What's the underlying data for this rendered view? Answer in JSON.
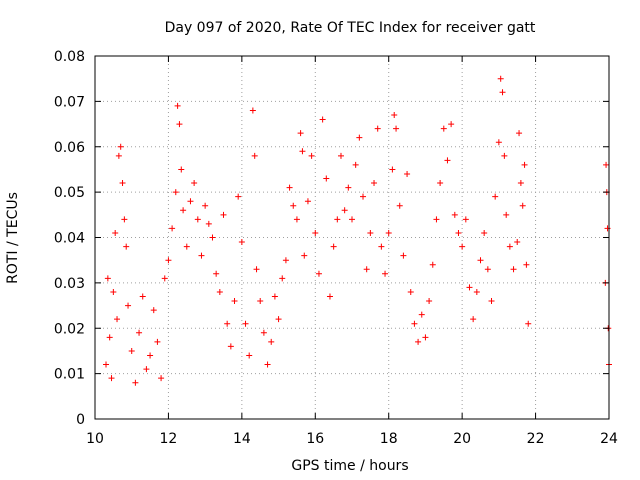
{
  "chart_data": {
    "type": "scatter",
    "title": "Day 097 of 2020, Rate Of TEC Index for receiver gatt",
    "xlabel": "GPS time / hours",
    "ylabel": "ROTI / TECUs",
    "xlim": [
      10,
      24
    ],
    "ylim": [
      0,
      0.08
    ],
    "xticks": [
      "10",
      "12",
      "14",
      "16",
      "18",
      "20",
      "22",
      "24"
    ],
    "yticks": [
      "0",
      "0.01",
      "0.02",
      "0.03",
      "0.04",
      "0.05",
      "0.06",
      "0.07",
      "0.08"
    ],
    "grid": true,
    "marker": "plus",
    "color": "#ff0000",
    "series": [
      {
        "points": [
          [
            10.3,
            0.012
          ],
          [
            10.35,
            0.031
          ],
          [
            10.4,
            0.018
          ],
          [
            10.45,
            0.009
          ],
          [
            10.5,
            0.028
          ],
          [
            10.55,
            0.041
          ],
          [
            10.6,
            0.022
          ],
          [
            10.65,
            0.058
          ],
          [
            10.7,
            0.06
          ],
          [
            10.75,
            0.052
          ],
          [
            10.8,
            0.044
          ],
          [
            10.85,
            0.038
          ],
          [
            10.9,
            0.025
          ],
          [
            11.0,
            0.015
          ],
          [
            11.1,
            0.008
          ],
          [
            11.2,
            0.019
          ],
          [
            11.3,
            0.027
          ],
          [
            11.4,
            0.011
          ],
          [
            11.5,
            0.014
          ],
          [
            11.6,
            0.024
          ],
          [
            11.7,
            0.017
          ],
          [
            11.8,
            0.009
          ],
          [
            11.9,
            0.031
          ],
          [
            12.0,
            0.035
          ],
          [
            12.1,
            0.042
          ],
          [
            12.2,
            0.05
          ],
          [
            12.25,
            0.069
          ],
          [
            12.3,
            0.065
          ],
          [
            12.35,
            0.055
          ],
          [
            12.4,
            0.046
          ],
          [
            12.5,
            0.038
          ],
          [
            12.6,
            0.048
          ],
          [
            12.7,
            0.052
          ],
          [
            12.8,
            0.044
          ],
          [
            12.9,
            0.036
          ],
          [
            13.0,
            0.047
          ],
          [
            13.1,
            0.043
          ],
          [
            13.2,
            0.04
          ],
          [
            13.3,
            0.032
          ],
          [
            13.4,
            0.028
          ],
          [
            13.5,
            0.045
          ],
          [
            13.6,
            0.021
          ],
          [
            13.7,
            0.016
          ],
          [
            13.8,
            0.026
          ],
          [
            13.9,
            0.049
          ],
          [
            14.0,
            0.039
          ],
          [
            14.1,
            0.021
          ],
          [
            14.2,
            0.014
          ],
          [
            14.3,
            0.068
          ],
          [
            14.35,
            0.058
          ],
          [
            14.4,
            0.033
          ],
          [
            14.5,
            0.026
          ],
          [
            14.6,
            0.019
          ],
          [
            14.7,
            0.012
          ],
          [
            14.8,
            0.017
          ],
          [
            14.9,
            0.027
          ],
          [
            15.0,
            0.022
          ],
          [
            15.1,
            0.031
          ],
          [
            15.2,
            0.035
          ],
          [
            15.3,
            0.051
          ],
          [
            15.4,
            0.047
          ],
          [
            15.5,
            0.044
          ],
          [
            15.6,
            0.063
          ],
          [
            15.65,
            0.059
          ],
          [
            15.7,
            0.036
          ],
          [
            15.8,
            0.048
          ],
          [
            15.9,
            0.058
          ],
          [
            16.0,
            0.041
          ],
          [
            16.1,
            0.032
          ],
          [
            16.2,
            0.066
          ],
          [
            16.3,
            0.053
          ],
          [
            16.4,
            0.027
          ],
          [
            16.5,
            0.038
          ],
          [
            16.6,
            0.044
          ],
          [
            16.7,
            0.058
          ],
          [
            16.8,
            0.046
          ],
          [
            16.9,
            0.051
          ],
          [
            17.0,
            0.044
          ],
          [
            17.1,
            0.056
          ],
          [
            17.2,
            0.062
          ],
          [
            17.3,
            0.049
          ],
          [
            17.4,
            0.033
          ],
          [
            17.5,
            0.041
          ],
          [
            17.6,
            0.052
          ],
          [
            17.7,
            0.064
          ],
          [
            17.8,
            0.038
          ],
          [
            17.9,
            0.032
          ],
          [
            18.0,
            0.041
          ],
          [
            18.1,
            0.055
          ],
          [
            18.15,
            0.067
          ],
          [
            18.2,
            0.064
          ],
          [
            18.3,
            0.047
          ],
          [
            18.4,
            0.036
          ],
          [
            18.5,
            0.054
          ],
          [
            18.6,
            0.028
          ],
          [
            18.7,
            0.021
          ],
          [
            18.8,
            0.017
          ],
          [
            18.9,
            0.023
          ],
          [
            19.0,
            0.018
          ],
          [
            19.1,
            0.026
          ],
          [
            19.2,
            0.034
          ],
          [
            19.3,
            0.044
          ],
          [
            19.4,
            0.052
          ],
          [
            19.5,
            0.064
          ],
          [
            19.6,
            0.057
          ],
          [
            19.7,
            0.065
          ],
          [
            19.8,
            0.045
          ],
          [
            19.9,
            0.041
          ],
          [
            20.0,
            0.038
          ],
          [
            20.1,
            0.044
          ],
          [
            20.2,
            0.029
          ],
          [
            20.3,
            0.022
          ],
          [
            20.4,
            0.028
          ],
          [
            20.5,
            0.035
          ],
          [
            20.6,
            0.041
          ],
          [
            20.7,
            0.033
          ],
          [
            20.8,
            0.026
          ],
          [
            20.9,
            0.049
          ],
          [
            21.0,
            0.061
          ],
          [
            21.05,
            0.075
          ],
          [
            21.1,
            0.072
          ],
          [
            21.15,
            0.058
          ],
          [
            21.2,
            0.045
          ],
          [
            21.3,
            0.038
          ],
          [
            21.4,
            0.033
          ],
          [
            21.5,
            0.039
          ],
          [
            21.55,
            0.063
          ],
          [
            21.6,
            0.052
          ],
          [
            21.65,
            0.047
          ],
          [
            21.7,
            0.056
          ],
          [
            21.75,
            0.034
          ],
          [
            21.8,
            0.021
          ],
          [
            23.9,
            0.03
          ],
          [
            23.92,
            0.056
          ],
          [
            23.94,
            0.05
          ],
          [
            23.96,
            0.042
          ],
          [
            23.98,
            0.02
          ],
          [
            24.0,
            0.012
          ]
        ]
      }
    ]
  }
}
